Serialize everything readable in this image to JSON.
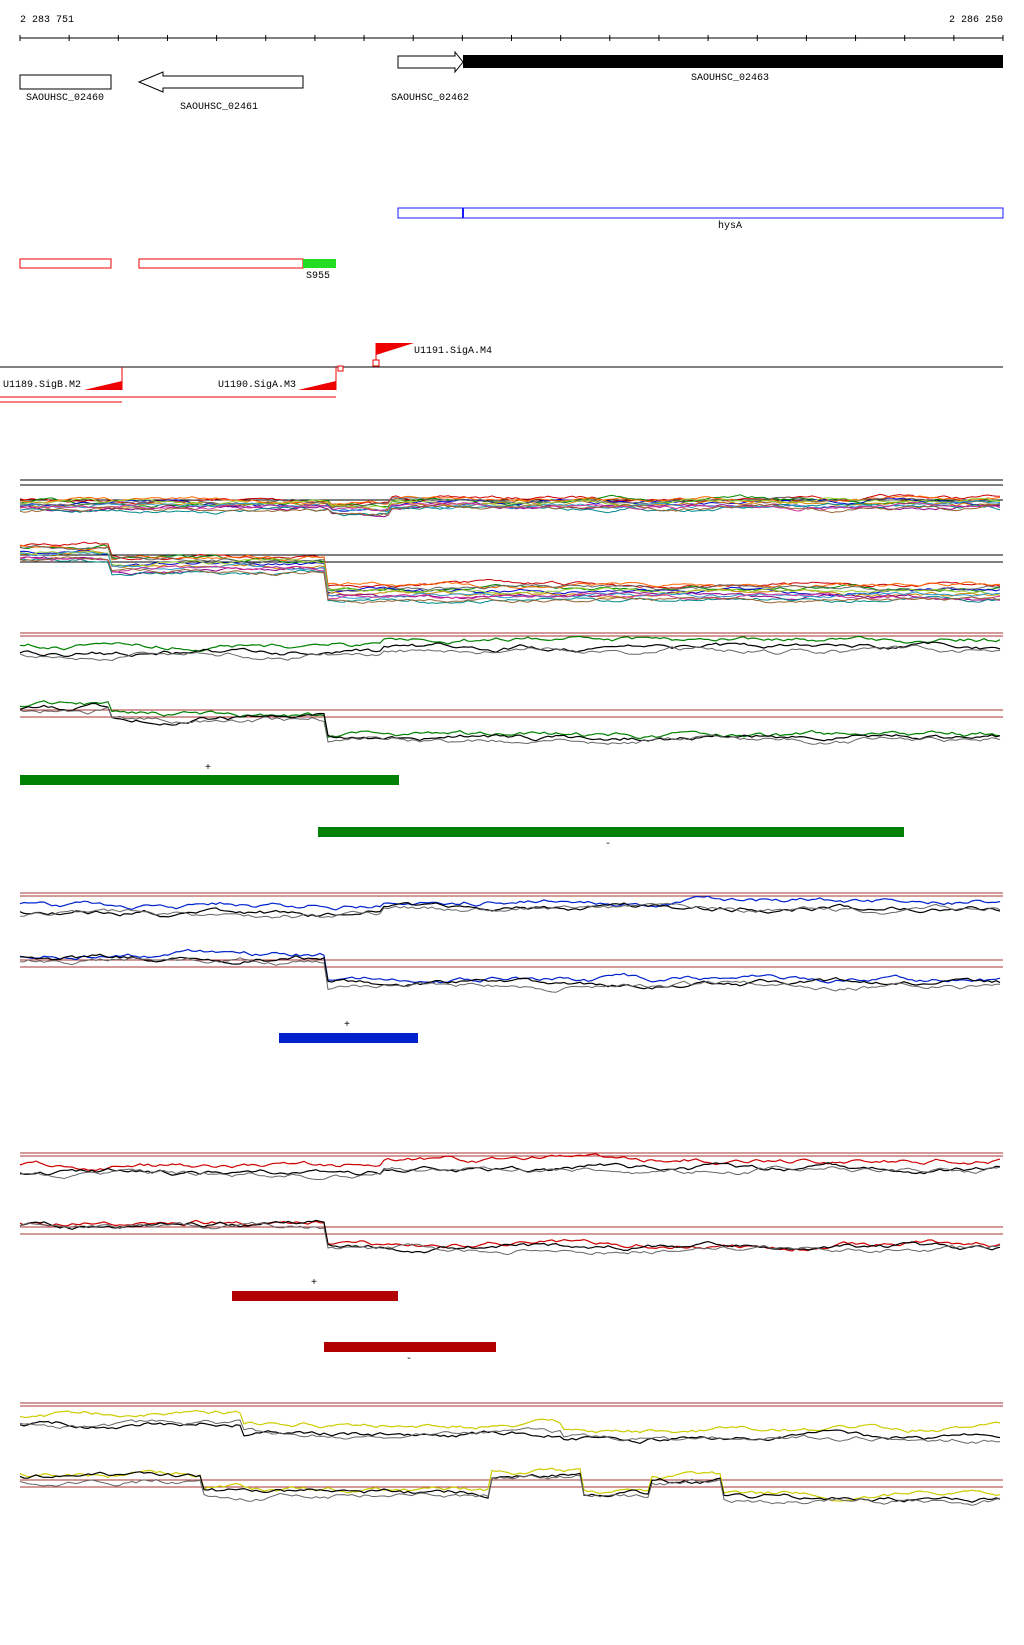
{
  "ruler": {
    "start": "2 283 751",
    "end": "2 286 250"
  },
  "genes": [
    {
      "label": "SAOUHSC_02460"
    },
    {
      "label": "SAOUHSC_02461"
    },
    {
      "label": "SAOUHSC_02462"
    },
    {
      "label": "SAOUHSC_02463"
    }
  ],
  "features": [
    {
      "label": "hysA"
    },
    {
      "label": "S955"
    }
  ],
  "promoters": [
    {
      "label": "U1191.SigA.M4"
    },
    {
      "label": "U1189.SigB.M2"
    },
    {
      "label": "U1190.SigA.M3"
    }
  ],
  "segments": [
    {
      "strand": "+"
    },
    {
      "strand": "-"
    },
    {
      "strand": "+"
    },
    {
      "strand": "+"
    },
    {
      "strand": "-"
    }
  ]
}
